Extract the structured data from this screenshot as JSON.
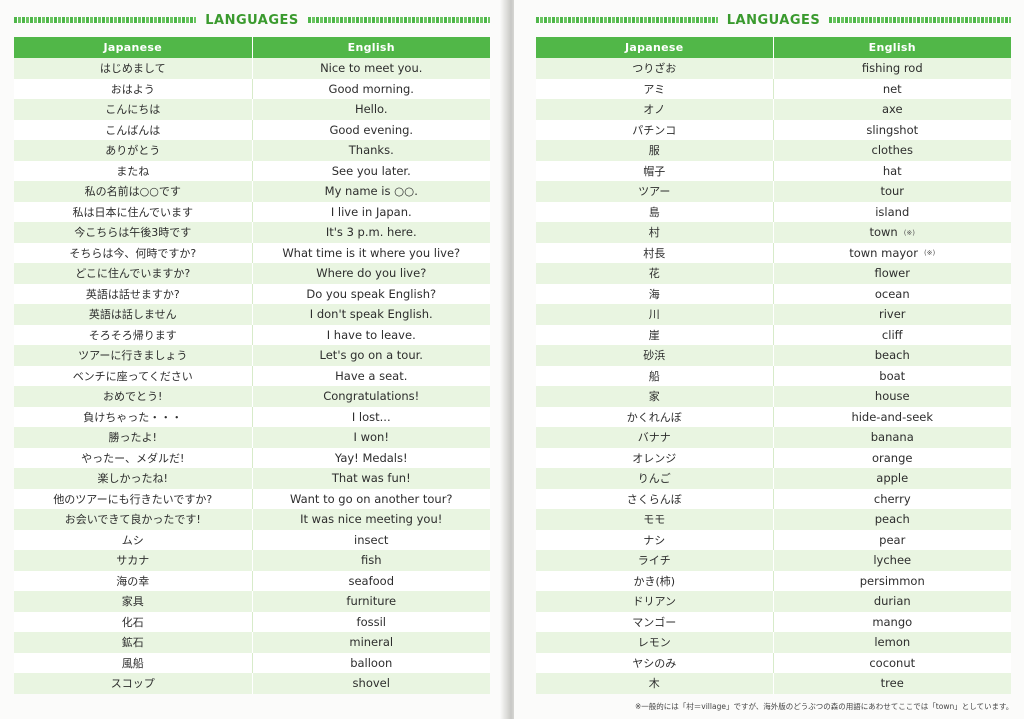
{
  "left_page": {
    "heading": "LANGUAGES",
    "columns": {
      "japanese": "Japanese",
      "english": "English"
    },
    "rows": [
      {
        "ja": "はじめまして",
        "en": "Nice to meet you."
      },
      {
        "ja": "おはよう",
        "en": "Good morning."
      },
      {
        "ja": "こんにちは",
        "en": "Hello."
      },
      {
        "ja": "こんばんは",
        "en": "Good evening."
      },
      {
        "ja": "ありがとう",
        "en": "Thanks."
      },
      {
        "ja": "またね",
        "en": "See you later."
      },
      {
        "ja": "私の名前は○○です",
        "en": "My name is ○○."
      },
      {
        "ja": "私は日本に住んでいます",
        "en": "I live in Japan."
      },
      {
        "ja": "今こちらは午後3時です",
        "en": "It's 3 p.m. here."
      },
      {
        "ja": "そちらは今、何時ですか?",
        "en": "What time is it where you live?"
      },
      {
        "ja": "どこに住んでいますか?",
        "en": "Where do you live?"
      },
      {
        "ja": "英語は話せますか?",
        "en": "Do you speak English?"
      },
      {
        "ja": "英語は話しません",
        "en": "I don't speak English."
      },
      {
        "ja": "そろそろ帰ります",
        "en": "I have to leave."
      },
      {
        "ja": "ツアーに行きましょう",
        "en": "Let's go on a tour."
      },
      {
        "ja": "ベンチに座ってください",
        "en": "Have a seat."
      },
      {
        "ja": "おめでとう!",
        "en": "Congratulations!"
      },
      {
        "ja": "負けちゃった・・・",
        "en": "I lost..."
      },
      {
        "ja": "勝ったよ!",
        "en": "I won!"
      },
      {
        "ja": "やったー、メダルだ!",
        "en": "Yay! Medals!"
      },
      {
        "ja": "楽しかったね!",
        "en": "That was fun!"
      },
      {
        "ja": "他のツアーにも行きたいですか?",
        "en": "Want to go on another tour?"
      },
      {
        "ja": "お会いできて良かったです!",
        "en": "It was nice meeting you!"
      },
      {
        "ja": "ムシ",
        "en": "insect"
      },
      {
        "ja": "サカナ",
        "en": "fish"
      },
      {
        "ja": "海の幸",
        "en": "seafood"
      },
      {
        "ja": "家具",
        "en": "furniture"
      },
      {
        "ja": "化石",
        "en": "fossil"
      },
      {
        "ja": "鉱石",
        "en": "mineral"
      },
      {
        "ja": "風船",
        "en": "balloon"
      },
      {
        "ja": "スコップ",
        "en": "shovel"
      }
    ]
  },
  "right_page": {
    "heading": "LANGUAGES",
    "columns": {
      "japanese": "Japanese",
      "english": "English"
    },
    "rows": [
      {
        "ja": "つりざお",
        "en": "fishing rod"
      },
      {
        "ja": "アミ",
        "en": "net"
      },
      {
        "ja": "オノ",
        "en": "axe"
      },
      {
        "ja": "パチンコ",
        "en": "slingshot"
      },
      {
        "ja": "服",
        "en": "clothes"
      },
      {
        "ja": "帽子",
        "en": "hat"
      },
      {
        "ja": "ツアー",
        "en": "tour"
      },
      {
        "ja": "島",
        "en": "island"
      },
      {
        "ja": "村",
        "en": "town",
        "note": "(※)"
      },
      {
        "ja": "村長",
        "en": "town mayor",
        "note": "(※)"
      },
      {
        "ja": "花",
        "en": "flower"
      },
      {
        "ja": "海",
        "en": "ocean"
      },
      {
        "ja": "川",
        "en": "river"
      },
      {
        "ja": "崖",
        "en": "cliff"
      },
      {
        "ja": "砂浜",
        "en": "beach"
      },
      {
        "ja": "船",
        "en": "boat"
      },
      {
        "ja": "家",
        "en": "house"
      },
      {
        "ja": "かくれんぼ",
        "en": "hide-and-seek"
      },
      {
        "ja": "バナナ",
        "en": "banana"
      },
      {
        "ja": "オレンジ",
        "en": "orange"
      },
      {
        "ja": "りんご",
        "en": "apple"
      },
      {
        "ja": "さくらんぼ",
        "en": "cherry"
      },
      {
        "ja": "モモ",
        "en": "peach"
      },
      {
        "ja": "ナシ",
        "en": "pear"
      },
      {
        "ja": "ライチ",
        "en": "lychee"
      },
      {
        "ja": "かき(柿)",
        "en": "persimmon"
      },
      {
        "ja": "ドリアン",
        "en": "durian"
      },
      {
        "ja": "マンゴー",
        "en": "mango"
      },
      {
        "ja": "レモン",
        "en": "lemon"
      },
      {
        "ja": "ヤシのみ",
        "en": "coconut"
      },
      {
        "ja": "木",
        "en": "tree"
      }
    ],
    "footnote": "※一般的には「村＝village」ですが、海外版のどうぶつの森の用語にあわせてここでは「town」としています。"
  },
  "colors": {
    "header_green": "#51b748",
    "heading_text": "#3a9a2e",
    "row_stripe": "#e9f5e1"
  }
}
